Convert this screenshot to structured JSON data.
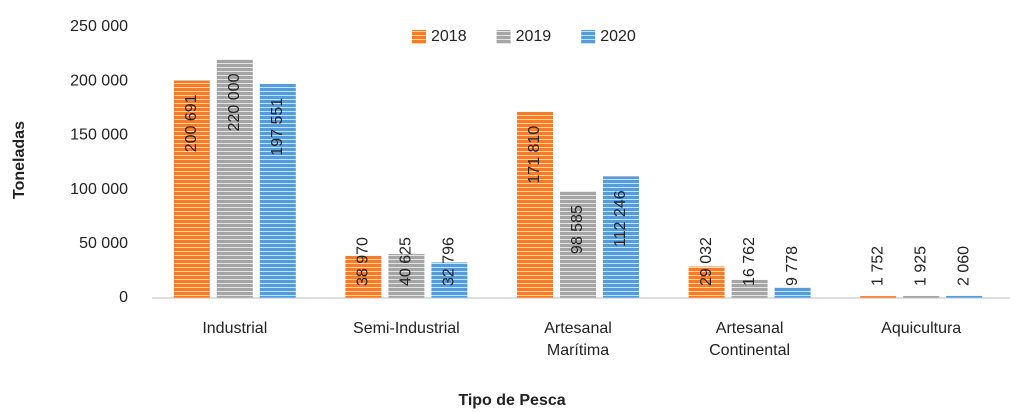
{
  "chart_data": {
    "type": "bar",
    "y_label": "Toneladas",
    "x_label": "Tipo de Pesca",
    "categories": [
      "Industrial",
      "Semi-Industrial",
      "Artesanal Marítima",
      "Artesanal Continental",
      "Aquicultura"
    ],
    "series": [
      {
        "name": "2018",
        "color": "#ed7d31",
        "values": [
          200691,
          38970,
          171810,
          29032,
          1752
        ],
        "value_labels": [
          "200 691",
          "38 970",
          "171 810",
          "29 032",
          "1 752"
        ]
      },
      {
        "name": "2019",
        "color": "#a5a5a5",
        "values": [
          220000,
          40625,
          98585,
          16762,
          1925
        ],
        "value_labels": [
          "220 000",
          "40 625",
          "98 585",
          "16 762",
          "1 925"
        ]
      },
      {
        "name": "2020",
        "color": "#5b9bd5",
        "values": [
          197551,
          32796,
          112246,
          9778,
          2060
        ],
        "value_labels": [
          "197 551",
          "32 796",
          "112 246",
          "9 778",
          "2 060"
        ]
      }
    ],
    "ylim": [
      0,
      250000
    ],
    "yticks": [
      0,
      {
        "value": 50000,
        "label": "50 000"
      },
      {
        "value": 100000,
        "label": "100 000"
      },
      {
        "value": 150000,
        "label": "150 000"
      },
      {
        "value": 200000,
        "label": "200 000"
      },
      {
        "value": 250000,
        "label": "250 000"
      }
    ],
    "legend": "top",
    "grid": false
  }
}
